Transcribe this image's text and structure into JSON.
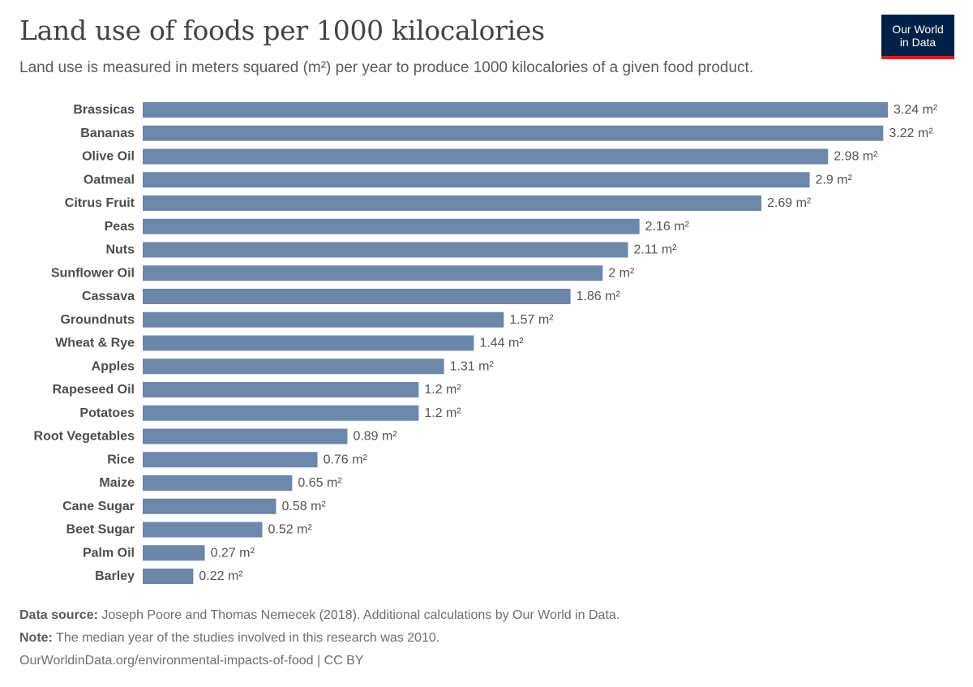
{
  "header": {
    "title": "Land use of foods per 1000 kilocalories",
    "subtitle": "Land use is measured in meters squared (m²) per year to produce 1000 kilocalories of a given food product."
  },
  "logo": {
    "line1": "Our World",
    "line2": "in Data",
    "bg_color": "#002147",
    "accent_color": "#ce261e"
  },
  "chart_data": {
    "type": "bar",
    "orientation": "horizontal",
    "unit": "m²",
    "bar_color": "#6d87ab",
    "grid": false,
    "categories": [
      "Brassicas",
      "Bananas",
      "Olive Oil",
      "Oatmeal",
      "Citrus Fruit",
      "Peas",
      "Nuts",
      "Sunflower Oil",
      "Cassava",
      "Groundnuts",
      "Wheat & Rye",
      "Apples",
      "Rapeseed Oil",
      "Potatoes",
      "Root Vegetables",
      "Rice",
      "Maize",
      "Cane Sugar",
      "Beet Sugar",
      "Palm Oil",
      "Barley"
    ],
    "values": [
      3.24,
      3.22,
      2.98,
      2.9,
      2.69,
      2.16,
      2.11,
      2,
      1.86,
      1.57,
      1.44,
      1.31,
      1.2,
      1.2,
      0.89,
      0.76,
      0.65,
      0.58,
      0.52,
      0.27,
      0.22
    ],
    "value_labels": [
      "3.24 m²",
      "3.22 m²",
      "2.98 m²",
      "2.9 m²",
      "2.69 m²",
      "2.16 m²",
      "2.11 m²",
      "2 m²",
      "1.86 m²",
      "1.57 m²",
      "1.44 m²",
      "1.31 m²",
      "1.2 m²",
      "1.2 m²",
      "0.89 m²",
      "0.76 m²",
      "0.65 m²",
      "0.58 m²",
      "0.52 m²",
      "0.27 m²",
      "0.22 m²"
    ],
    "xlim": [
      0,
      3.24
    ]
  },
  "footer": {
    "source_label": "Data source:",
    "source_text": "Joseph Poore and Thomas Nemecek (2018). Additional calculations by Our World in Data.",
    "note_label": "Note:",
    "note_text": "The median year of the studies involved in this research was 2010.",
    "url_text": "OurWorldinData.org/environmental-impacts-of-food | CC BY"
  }
}
